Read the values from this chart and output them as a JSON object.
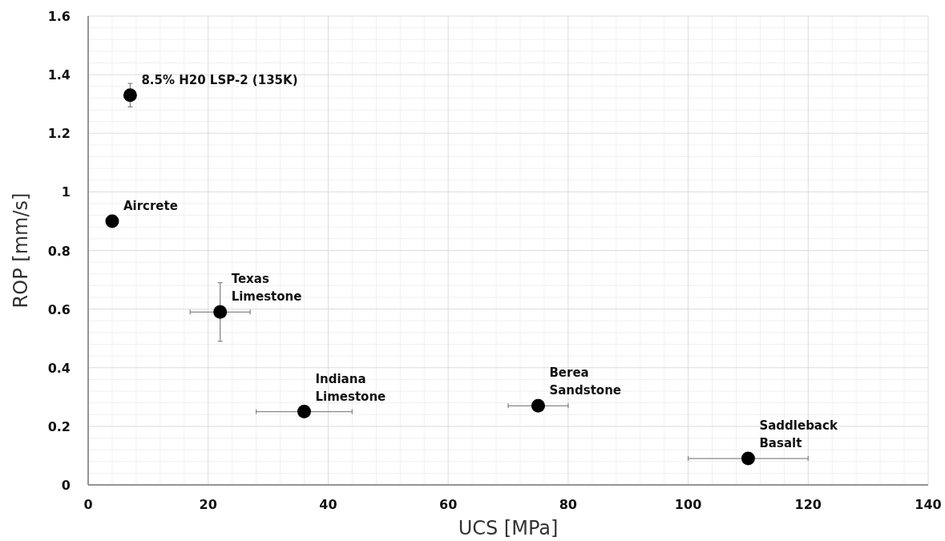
{
  "chart_data": {
    "type": "scatter",
    "xlabel": "UCS [MPa]",
    "ylabel": "ROP [mm/s]",
    "x": [
      7,
      4,
      22,
      36,
      75,
      110
    ],
    "values": [
      1.33,
      0.9,
      0.59,
      0.25,
      0.27,
      0.09
    ],
    "errors": [
      [
        1.29,
        1.37
      ],
      null,
      [
        0.49,
        0.69
      ],
      null,
      null,
      null
    ],
    "xerrors": [
      null,
      null,
      [
        17,
        27
      ],
      [
        28,
        44
      ],
      [
        70,
        80
      ],
      [
        100,
        120
      ]
    ],
    "color": "#000000",
    "marker": "circle",
    "annotations": [
      {
        "text": "8.5% H20 LSP-2 (135K)",
        "x": 7,
        "y": 1.33
      },
      {
        "text": "Aircrete",
        "x": 4,
        "y": 0.9
      },
      {
        "text": "Texas\nLimestone",
        "x": 22,
        "y": 0.59
      },
      {
        "text": "Indiana\nLimestone",
        "x": 36,
        "y": 0.25
      },
      {
        "text": "Berea\nSandstone",
        "x": 75,
        "y": 0.27
      },
      {
        "text": "Saddleback\nBasalt",
        "x": 110,
        "y": 0.09
      }
    ],
    "xlim": [
      0,
      140
    ],
    "xticks": [
      0,
      20,
      40,
      60,
      80,
      100,
      120,
      140
    ],
    "ylim": [
      0,
      1.6
    ],
    "yticks": [
      0,
      0.2,
      0.4,
      0.6,
      0.8,
      1,
      1.2,
      1.4,
      1.6
    ],
    "grid": true
  }
}
